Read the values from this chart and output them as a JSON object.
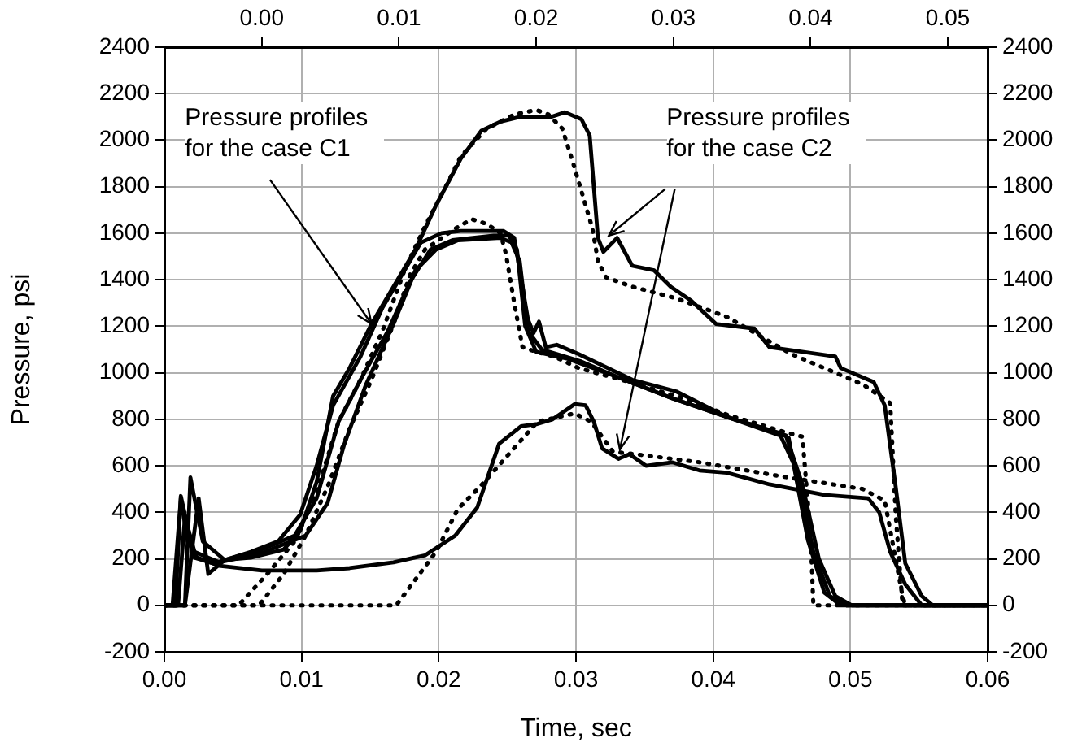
{
  "chart_data": {
    "type": "line",
    "xlabel": "Time, sec",
    "ylabel": "Pressure, psi",
    "annotations": [
      {
        "text": "Pressure profiles for the case C1",
        "x": 0.0151,
        "y": 1210
      },
      {
        "text": "Pressure profiles for the case C2",
        "x": 0.0324,
        "y": 1590
      }
    ],
    "xlim": [
      0,
      0.06
    ],
    "xticks": [
      {
        "value": 0,
        "label": "0.00"
      },
      {
        "value": 0.01,
        "label": "0.01"
      },
      {
        "value": 0.02,
        "label": "0.02"
      },
      {
        "value": 0.03,
        "label": "0.03"
      },
      {
        "value": 0.04,
        "label": "0.04"
      },
      {
        "value": 0.05,
        "label": "0.05"
      },
      {
        "value": 0.06,
        "label": "0.06"
      }
    ],
    "x2lim": [
      -0.0071,
      0.0529
    ],
    "x2ticks": [
      {
        "value": 0,
        "label": "0.00"
      },
      {
        "value": 0.01,
        "label": "0.01"
      },
      {
        "value": 0.02,
        "label": "0.02"
      },
      {
        "value": 0.03,
        "label": "0.03"
      },
      {
        "value": 0.04,
        "label": "0.04"
      },
      {
        "value": 0.05,
        "label": "0.05"
      }
    ],
    "ylim": [
      -200,
      2400
    ],
    "yticks": [
      -200,
      0,
      200,
      400,
      600,
      800,
      1000,
      1200,
      1400,
      1600,
      1800,
      2000,
      2200,
      2400
    ],
    "y2lim": [
      -200,
      2400
    ],
    "y2ticks": [
      -200,
      0,
      200,
      400,
      600,
      800,
      1000,
      1200,
      1400,
      1600,
      1800,
      2000,
      2200,
      2400
    ],
    "grid": true,
    "legend": false,
    "marker": "none",
    "series": [
      {
        "color": "#000000",
        "line_style": "solid",
        "x": [
          0,
          0.0015,
          0.0019,
          0.0028,
          0.0044,
          0.0063,
          0.0087,
          0.0099,
          0.0111,
          0.0123,
          0.0135,
          0.0151,
          0.0167,
          0.0183,
          0.0198,
          0.0216,
          0.0231,
          0.0245,
          0.0259,
          0.0282,
          0.0292,
          0.0304,
          0.031,
          0.0316,
          0.032,
          0.033,
          0.0341,
          0.0357,
          0.0369,
          0.0384,
          0.0402,
          0.043,
          0.0441,
          0.0489,
          0.0493,
          0.0517,
          0.0525,
          0.0533,
          0.054,
          0.0552,
          0.056,
          0.06
        ],
        "values": [
          0,
          0,
          550,
          275,
          195,
          205,
          240,
          320,
          530,
          900,
          1020,
          1210,
          1370,
          1530,
          1720,
          1920,
          2040,
          2080,
          2100,
          2100,
          2120,
          2090,
          2020,
          1580,
          1520,
          1580,
          1460,
          1440,
          1370,
          1310,
          1210,
          1190,
          1110,
          1070,
          1020,
          960,
          860,
          510,
          180,
          40,
          0,
          0
        ]
      },
      {
        "color": "#000000",
        "line_style": "dotted",
        "x": [
          0,
          0.0054,
          0.0075,
          0.0095,
          0.0111,
          0.0127,
          0.0143,
          0.0159,
          0.0175,
          0.019,
          0.0206,
          0.0216,
          0.0235,
          0.0255,
          0.0271,
          0.028,
          0.029,
          0.0298,
          0.0312,
          0.0316,
          0.0322,
          0.0341,
          0.0373,
          0.041,
          0.0457,
          0.0509,
          0.0529,
          0.0533,
          0.0538,
          0.06
        ],
        "values": [
          0,
          0,
          135,
          275,
          485,
          790,
          970,
          1180,
          1440,
          1630,
          1810,
          1930,
          2050,
          2110,
          2130,
          2110,
          2050,
          1900,
          1620,
          1480,
          1410,
          1370,
          1320,
          1240,
          1080,
          950,
          870,
          390,
          0,
          0
        ]
      },
      {
        "color": "#000000",
        "line_style": "solid",
        "x": [
          0,
          0.0008,
          0.0012,
          0.0022,
          0.0036,
          0.0063,
          0.0083,
          0.0099,
          0.0111,
          0.0123,
          0.0143,
          0.0159,
          0.0175,
          0.0187,
          0.0202,
          0.0216,
          0.0247,
          0.0255,
          0.0259,
          0.0265,
          0.0269,
          0.0273,
          0.0278,
          0.0286,
          0.0302,
          0.0341,
          0.0373,
          0.041,
          0.0449,
          0.0455,
          0.0461,
          0.0469,
          0.0481,
          0.0493,
          0.06
        ],
        "values": [
          0,
          0,
          470,
          205,
          180,
          230,
          275,
          390,
          600,
          860,
          1070,
          1280,
          1440,
          1560,
          1600,
          1610,
          1610,
          1580,
          1440,
          1230,
          1170,
          1220,
          1110,
          1120,
          1080,
          970,
          920,
          810,
          740,
          720,
          530,
          280,
          55,
          0,
          0
        ]
      },
      {
        "color": "#000000",
        "line_style": "solid",
        "x": [
          0,
          0.0015,
          0.0025,
          0.0032,
          0.0044,
          0.0071,
          0.0095,
          0.0111,
          0.0127,
          0.0143,
          0.0163,
          0.0179,
          0.0194,
          0.021,
          0.024,
          0.0251,
          0.0257,
          0.0263,
          0.0271,
          0.0294,
          0.0331,
          0.037,
          0.041,
          0.0449,
          0.0461,
          0.0473,
          0.0485,
          0.0497,
          0.06
        ],
        "values": [
          0,
          0,
          460,
          135,
          195,
          240,
          300,
          460,
          790,
          970,
          1180,
          1390,
          1530,
          1570,
          1590,
          1590,
          1530,
          1200,
          1090,
          1060,
          980,
          890,
          810,
          730,
          580,
          230,
          40,
          0,
          0
        ]
      },
      {
        "color": "#000000",
        "line_style": "solid",
        "x": [
          0,
          0.001,
          0.0015,
          0.0022,
          0.004,
          0.0071,
          0.0103,
          0.0119,
          0.0131,
          0.0147,
          0.0167,
          0.0183,
          0.0198,
          0.0214,
          0.0245,
          0.0253,
          0.0259,
          0.0265,
          0.0275,
          0.0303,
          0.0331,
          0.037,
          0.041,
          0.0453,
          0.0465,
          0.0477,
          0.0489,
          0.0501,
          0.06
        ],
        "values": [
          0,
          0,
          380,
          230,
          185,
          225,
          300,
          440,
          690,
          950,
          1210,
          1440,
          1530,
          1570,
          1580,
          1560,
          1480,
          1180,
          1100,
          1050,
          980,
          890,
          810,
          730,
          520,
          200,
          40,
          0,
          0
        ]
      },
      {
        "color": "#000000",
        "line_style": "dotted",
        "x": [
          0,
          0.0069,
          0.0087,
          0.0103,
          0.0119,
          0.0135,
          0.0151,
          0.0167,
          0.0179,
          0.019,
          0.0212,
          0.0224,
          0.0235,
          0.0245,
          0.0249,
          0.0255,
          0.0261,
          0.0271,
          0.0284,
          0.0302,
          0.0333,
          0.0373,
          0.041,
          0.0449,
          0.0465,
          0.0471,
          0.0473,
          0.06
        ],
        "values": [
          0,
          0,
          135,
          300,
          510,
          760,
          970,
          1210,
          1420,
          1530,
          1620,
          1660,
          1640,
          1600,
          1510,
          1300,
          1110,
          1090,
          1070,
          1020,
          970,
          900,
          820,
          750,
          725,
          300,
          0,
          0
        ]
      },
      {
        "color": "#000000",
        "line_style": "solid",
        "x": [
          0,
          0.0006,
          0.0012,
          0.0017,
          0.0024,
          0.004,
          0.0071,
          0.0111,
          0.0135,
          0.0167,
          0.019,
          0.0212,
          0.0228,
          0.0244,
          0.026,
          0.0272,
          0.0283,
          0.0299,
          0.0307,
          0.0313,
          0.0319,
          0.0331,
          0.0339,
          0.0351,
          0.037,
          0.039,
          0.041,
          0.0441,
          0.0481,
          0.0513,
          0.0521,
          0.0529,
          0.054,
          0.0552,
          0.06
        ],
        "values": [
          0,
          0,
          460,
          275,
          205,
          170,
          150,
          150,
          160,
          185,
          215,
          300,
          420,
          695,
          770,
          780,
          800,
          865,
          860,
          790,
          675,
          630,
          650,
          600,
          615,
          580,
          570,
          520,
          475,
          460,
          400,
          230,
          90,
          0,
          0
        ]
      },
      {
        "color": "#000000",
        "line_style": "dotted",
        "x": [
          0,
          0.0069,
          0.0169,
          0.0198,
          0.0214,
          0.023,
          0.0272,
          0.0299,
          0.0311,
          0.0327,
          0.0343,
          0.039,
          0.0449,
          0.0509,
          0.0525,
          0.0538,
          0.054,
          0.06
        ],
        "values": [
          0,
          0,
          0,
          230,
          415,
          510,
          790,
          825,
          790,
          660,
          650,
          615,
          555,
          500,
          450,
          40,
          0,
          0
        ]
      }
    ]
  }
}
